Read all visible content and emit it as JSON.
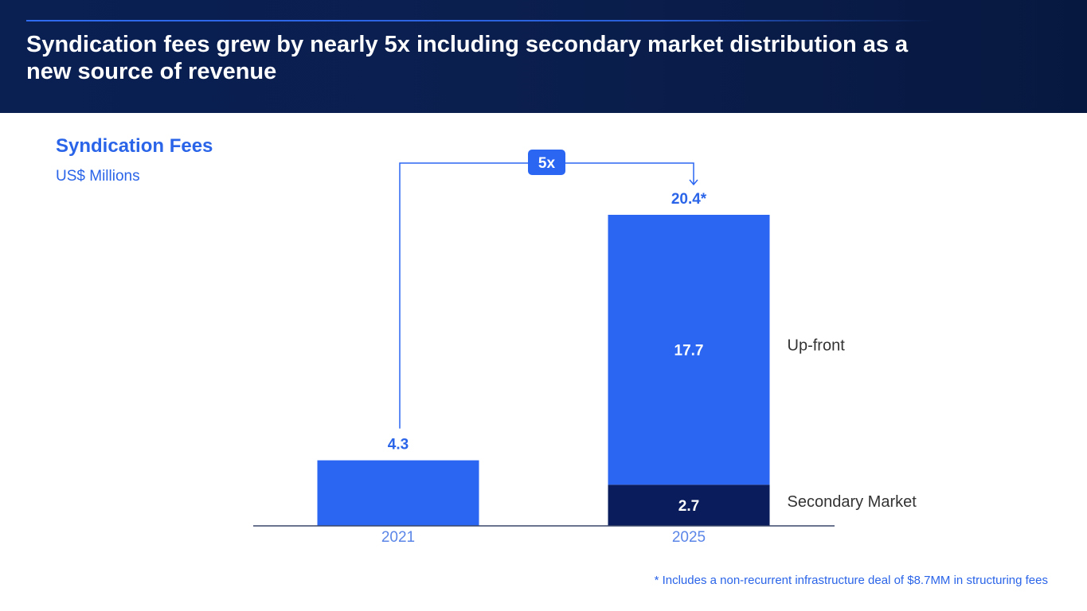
{
  "header": {
    "title": "Syndication fees grew by nearly 5x including secondary market distribution as a new source of revenue"
  },
  "footnote": "* Includes a non-recurrent infrastructure deal of $8.7MM in structuring fees",
  "colors": {
    "primary_blue": "#2b66f2",
    "dark_navy": "#0a1c5c",
    "label_blue": "#2a64e8",
    "axis_label": "#5b86e8",
    "segment_label": "#333333"
  },
  "chart_data": {
    "type": "bar",
    "stacked": true,
    "title": "Syndication Fees",
    "subtitle": "US$ Millions",
    "categories": [
      "2021",
      "2025"
    ],
    "series": [
      {
        "name": "Secondary Market",
        "values": [
          0,
          2.7
        ],
        "color": "#0a1c5c"
      },
      {
        "name": "Up-front",
        "values": [
          4.3,
          17.7
        ],
        "color": "#2b66f2"
      }
    ],
    "totals": [
      "4.3",
      "20.4*"
    ],
    "segment_labels": {
      "upfront_2025": "17.7",
      "secondary_2025": "2.7"
    },
    "series_labels": [
      "Up-front",
      "Secondary Market"
    ],
    "growth_annotation": "5x",
    "ylim": [
      0,
      20.4
    ],
    "grid": false
  }
}
